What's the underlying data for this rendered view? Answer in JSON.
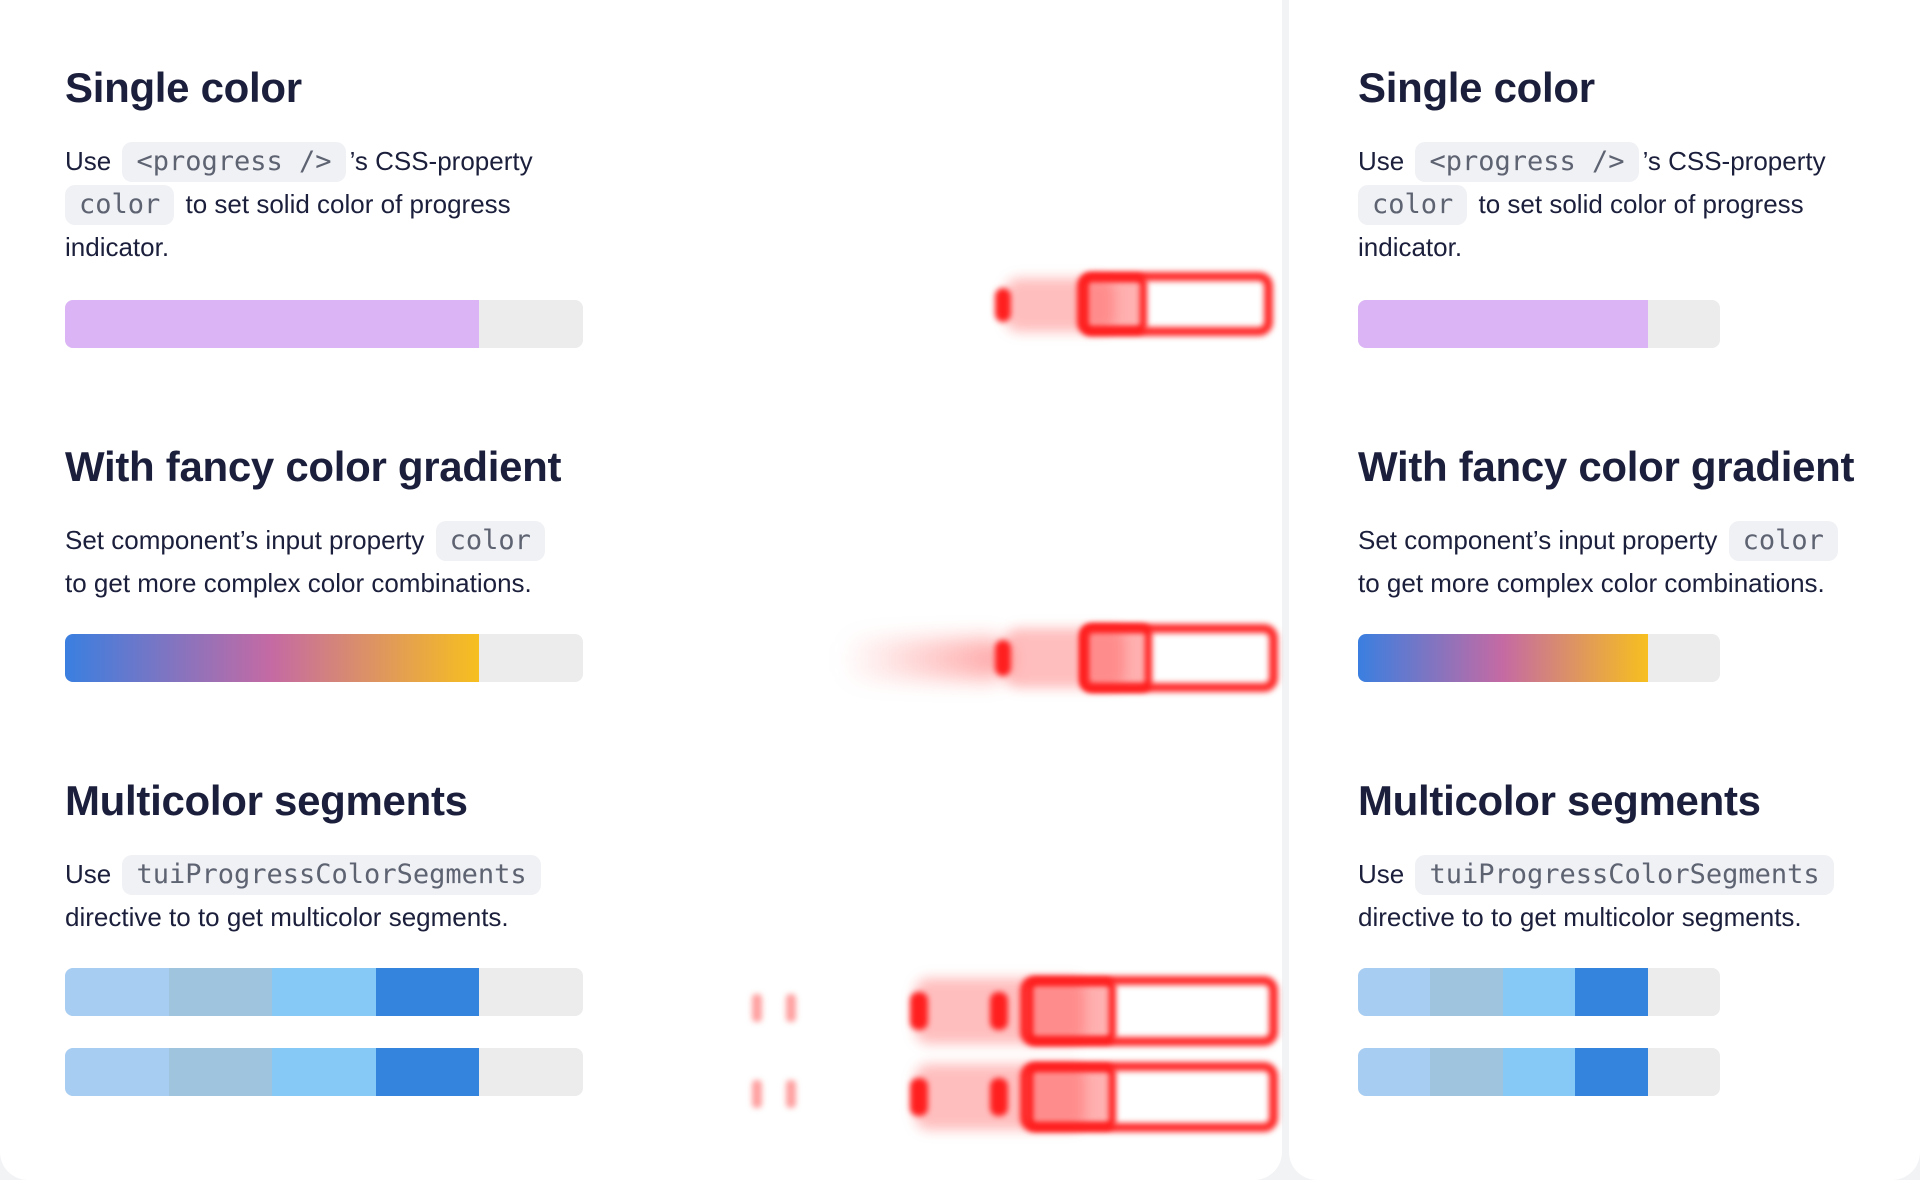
{
  "sections": [
    {
      "title": "Single color",
      "desc": {
        "pre": "Use",
        "code1": "<progress />",
        "mid": "’s CSS-property",
        "code2": "color",
        "post": "to set solid color of progress indicator."
      },
      "progress": {
        "value_fraction": 0.8,
        "color": "#dbb4f5",
        "track_color": "#ececec"
      }
    },
    {
      "title": "With fancy color gradient",
      "desc": {
        "pre": "Set component’s input property",
        "code1": "color",
        "post": "to get more complex color combinations."
      },
      "progress": {
        "value_fraction": 0.8,
        "gradient": [
          "#3a7fe0",
          "#c56aa3",
          "#f7bf1f"
        ],
        "track_color": "#ececec"
      }
    },
    {
      "title": "Multicolor segments",
      "desc": {
        "pre": "Use",
        "code1": "tuiProgressColorSegments",
        "post": "directive to to get multicolor segments."
      },
      "progress": {
        "value_fraction": 0.8,
        "segment_colors": [
          "#a8cdf2",
          "#9fc4de",
          "#86c9f7",
          "#3484dd"
        ],
        "track_color": "#ececec",
        "bars": 2
      }
    }
  ]
}
